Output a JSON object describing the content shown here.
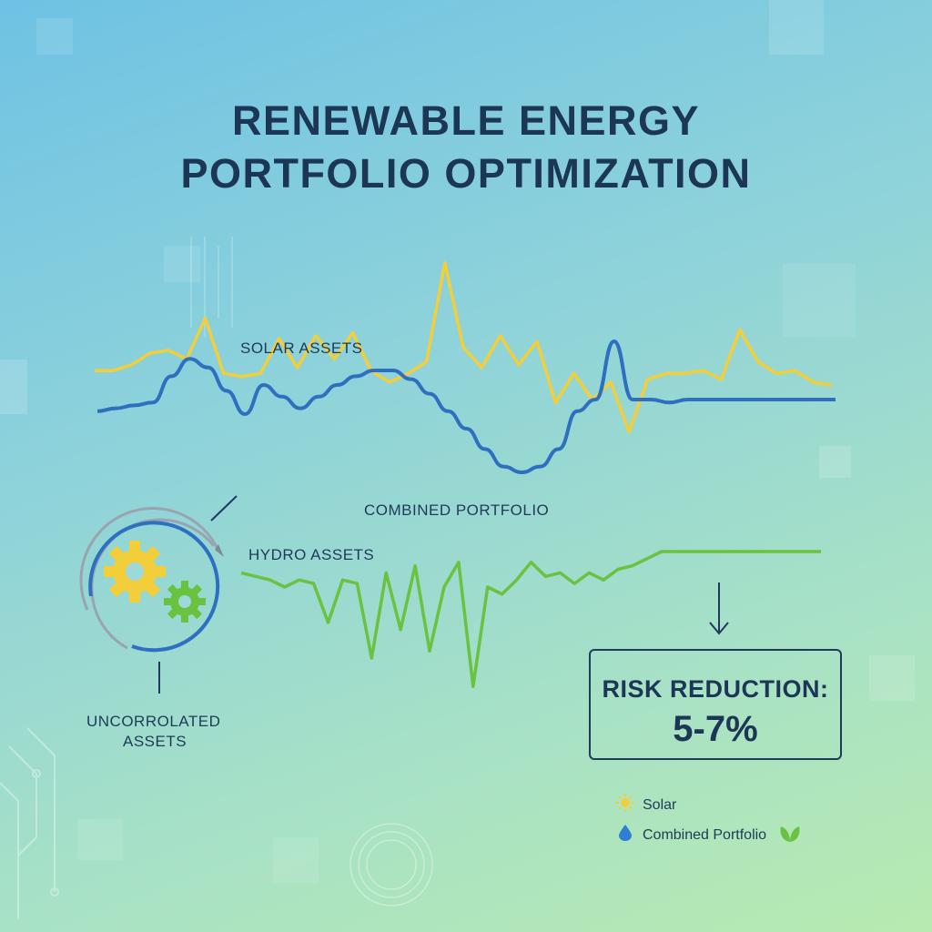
{
  "title_line1": "RENEWABLE ENERGY",
  "title_line2": "PORTFOLIO OPTIMIZATION",
  "chart_data": {
    "type": "line",
    "x": [
      0,
      1,
      2,
      3,
      4,
      5,
      6,
      7,
      8,
      9,
      10,
      11,
      12,
      13,
      14,
      15,
      16,
      17,
      18,
      19,
      20,
      21,
      22,
      23,
      24,
      25,
      26,
      27,
      28,
      29,
      30,
      31,
      32,
      33,
      34,
      35,
      36,
      37,
      38,
      39,
      40
    ],
    "series": [
      {
        "name": "SOLAR ASSETS",
        "color": "#f2cf3a",
        "values": [
          39,
          39,
          41,
          45,
          46,
          43,
          57,
          38,
          37,
          38,
          50,
          40,
          51,
          43,
          52,
          39,
          35,
          38,
          42,
          76,
          47,
          40,
          51,
          41,
          49,
          28,
          38,
          29,
          35,
          18,
          36,
          38,
          38,
          39,
          36,
          53,
          42,
          38,
          39,
          35,
          34
        ]
      },
      {
        "name": "COMBINED PORTFOLIO",
        "color": "#2f6fbf",
        "values": [
          26,
          27,
          28,
          29,
          38,
          44,
          41,
          33,
          25,
          35,
          31,
          27,
          31,
          35,
          38,
          40,
          40,
          37,
          32,
          26,
          20,
          13,
          7,
          5,
          7,
          13,
          26,
          30,
          50,
          30,
          30,
          29,
          30,
          30,
          30,
          30,
          30,
          30,
          30,
          30,
          30
        ]
      },
      {
        "name": "HYDRO ASSETS",
        "color": "#6ac241",
        "values": [
          -6,
          -7,
          -8,
          -10,
          -8,
          -9,
          -20,
          -8,
          -9,
          -30,
          -6,
          -22,
          -4,
          -28,
          -10,
          -3,
          -38,
          -10,
          -12,
          -8,
          -3,
          -7,
          -6,
          -9,
          -6,
          -8,
          -5,
          -4,
          -2,
          0,
          0,
          0,
          0,
          0,
          0,
          0,
          0,
          0,
          0,
          0,
          0
        ]
      }
    ],
    "annotations": [
      "COMBINED PORTFOLIO",
      "UNCORROLATED ASSETS"
    ]
  },
  "labels": {
    "solar": "SOLAR ASSETS",
    "combined": "COMBINED PORTFOLIO",
    "hydro": "HYDRO ASSETS",
    "uncorrelated_line1": "UNCORROLATED",
    "uncorrelated_line2": "ASSETS"
  },
  "risk": {
    "label": "RISK REDUCTION:",
    "value": "5-7%"
  },
  "legend": [
    {
      "label": "Solar",
      "icon": "sun-icon",
      "color": "#f2cf3a"
    },
    {
      "label": "Combined Portfolio",
      "icon": "water-drop-icon",
      "color": "#2f7fd0"
    }
  ],
  "colors": {
    "solar": "#f2cf3a",
    "combined": "#2f6fbf",
    "hydro": "#6ac241",
    "text": "#1c3655"
  }
}
